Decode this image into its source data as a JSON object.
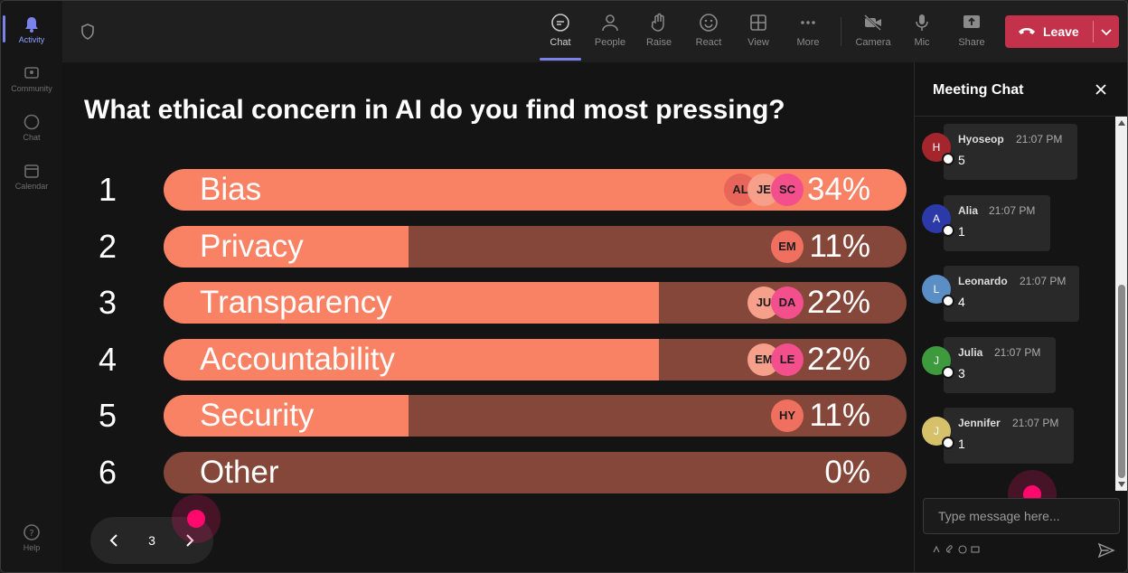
{
  "rail": {
    "items": [
      {
        "label": "Activity",
        "icon": "bell-icon"
      },
      {
        "label": "Community",
        "icon": "community-icon"
      },
      {
        "label": "Chat",
        "icon": "chat-icon"
      },
      {
        "label": "Calendar",
        "icon": "calendar-icon"
      }
    ],
    "help": {
      "label": "Help",
      "icon": "help-icon"
    }
  },
  "toolbar": {
    "buttons": [
      {
        "label": "Chat",
        "icon": "chat-icon"
      },
      {
        "label": "People",
        "icon": "people-icon"
      },
      {
        "label": "Raise",
        "icon": "hand-icon"
      },
      {
        "label": "React",
        "icon": "smiley-icon"
      },
      {
        "label": "View",
        "icon": "grid-icon"
      },
      {
        "label": "More",
        "icon": "more-icon"
      },
      {
        "label": "Camera",
        "icon": "camera-off-icon"
      },
      {
        "label": "Mic",
        "icon": "mic-icon"
      },
      {
        "label": "Share",
        "icon": "share-icon"
      }
    ],
    "leave_label": "Leave"
  },
  "poll": {
    "question": "What ethical concern in AI do you find most pressing?",
    "options": [
      {
        "num": "1",
        "label": "Bias",
        "percent": "34%",
        "fill": 1.0,
        "voters": [
          "AL",
          "JE",
          "SC"
        ]
      },
      {
        "num": "2",
        "label": "Privacy",
        "percent": "11%",
        "fill": 0.33,
        "voters": [
          "EM"
        ]
      },
      {
        "num": "3",
        "label": "Transparency",
        "percent": "22%",
        "fill": 0.667,
        "voters": [
          "JU",
          "DA"
        ]
      },
      {
        "num": "4",
        "label": "Accountability",
        "percent": "22%",
        "fill": 0.667,
        "voters": [
          "EM",
          "LE"
        ]
      },
      {
        "num": "5",
        "label": "Security",
        "percent": "11%",
        "fill": 0.33,
        "voters": [
          "HY"
        ]
      },
      {
        "num": "6",
        "label": "Other",
        "percent": "0%",
        "fill": 0.0,
        "voters": []
      }
    ],
    "page": "3"
  },
  "chat": {
    "title": "Meeting Chat",
    "messages": [
      {
        "initial": "H",
        "name": "Hyoseop",
        "time": "21:07 PM",
        "text": "5",
        "avatar_color": "#a4262c"
      },
      {
        "initial": "A",
        "name": "Alia",
        "time": "21:07 PM",
        "text": "1",
        "avatar_color": "#2b3aa8"
      },
      {
        "initial": "L",
        "name": "Leonardo",
        "time": "21:07 PM",
        "text": "4",
        "avatar_color": "#5b8ec4"
      },
      {
        "initial": "J",
        "name": "Julia",
        "time": "21:07 PM",
        "text": "3",
        "avatar_color": "#3d9a3d"
      },
      {
        "initial": "J",
        "name": "Jennifer",
        "time": "21:07 PM",
        "text": "1",
        "avatar_color": "#d6c16a"
      }
    ],
    "input_placeholder": "Type message here..."
  },
  "colors": {
    "bar_fill": "#f98264",
    "bar_track": "#84473a",
    "accent": "#7b83eb",
    "leave": "#c4314b",
    "cursor": "#ff0a6c"
  }
}
